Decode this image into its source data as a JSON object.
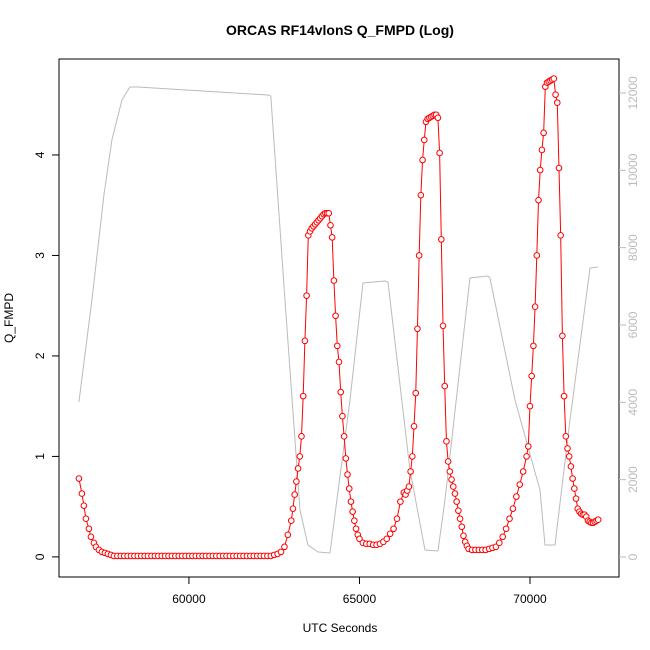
{
  "chart_data": {
    "type": "line",
    "title": "ORCAS RF14vlonS Q_FMPD (Log)",
    "xlabel": "UTC Seconds",
    "ylabel": "Q_FMPD",
    "xlim": [
      56190,
      72610
    ],
    "ylim": [
      -0.2,
      4.955
    ],
    "y2lim": [
      -517,
      12878
    ],
    "xticks": [
      60000,
      65000,
      70000
    ],
    "yticks": [
      0,
      1,
      2,
      3,
      4
    ],
    "y2ticks": [
      0,
      2000,
      4000,
      6000,
      8000,
      10000,
      12000
    ],
    "series": [
      {
        "color": "#bbbbbb",
        "axis": "y2",
        "markers": false,
        "x": [
          56774,
          57155,
          57507,
          57741,
          58035,
          58270,
          58500,
          62317,
          62400,
          62816,
          63256,
          63490,
          63784,
          64135,
          64722,
          65103,
          65748,
          65836,
          66481,
          66921,
          67302,
          67507,
          68240,
          68768,
          68827,
          69560,
          70293,
          70440,
          70733,
          71173,
          71760,
          71994
        ],
        "values": [
          4008,
          6646,
          9361,
          10784,
          11818,
          12154,
          12154,
          11947,
          11921,
          6646,
          1215,
          310,
          130,
          103,
          4060,
          7086,
          7137,
          7111,
          2250,
          181,
          155,
          1474,
          7215,
          7266,
          7215,
          4060,
          1733,
          310,
          310,
          3543,
          7473,
          7499
        ]
      },
      {
        "color": "#ff0000",
        "axis": "y",
        "markers": true,
        "x": [
          56774,
          56862,
          56920,
          56979,
          57067,
          57126,
          57214,
          57272,
          57360,
          57448,
          57536,
          57624,
          57712,
          57800,
          57900,
          58000,
          58100,
          58200,
          58300,
          58400,
          58500,
          58600,
          58700,
          58800,
          58900,
          59000,
          59100,
          59200,
          59300,
          59400,
          59500,
          59600,
          59700,
          59800,
          59900,
          60000,
          60100,
          60200,
          60300,
          60400,
          60500,
          60600,
          60700,
          60800,
          60900,
          61000,
          61100,
          61200,
          61300,
          61400,
          61500,
          61600,
          61700,
          61800,
          61900,
          62000,
          62100,
          62200,
          62300,
          62400,
          62500,
          62600,
          62700,
          62800,
          62900,
          63000,
          63050,
          63100,
          63150,
          63200,
          63250,
          63300,
          63350,
          63400,
          63450,
          63500,
          63550,
          63600,
          63650,
          63700,
          63750,
          63800,
          63850,
          63900,
          63950,
          64000,
          64050,
          64100,
          64150,
          64200,
          64250,
          64300,
          64350,
          64400,
          64450,
          64500,
          64550,
          64600,
          64650,
          64700,
          64750,
          64800,
          64850,
          64900,
          64950,
          65000,
          65100,
          65200,
          65300,
          65400,
          65500,
          65600,
          65700,
          65800,
          65900,
          66000,
          66100,
          66200,
          66300,
          66350,
          66400,
          66450,
          66500,
          66550,
          66600,
          66650,
          66700,
          66750,
          66800,
          66850,
          66900,
          66950,
          67000,
          67050,
          67100,
          67150,
          67200,
          67250,
          67300,
          67350,
          67400,
          67450,
          67500,
          67550,
          67600,
          67650,
          67700,
          67750,
          67800,
          67850,
          67900,
          67950,
          68000,
          68050,
          68100,
          68150,
          68200,
          68300,
          68400,
          68500,
          68600,
          68700,
          68800,
          68900,
          69000,
          69100,
          69200,
          69300,
          69400,
          69500,
          69600,
          69700,
          69800,
          69900,
          69950,
          70000,
          70050,
          70100,
          70150,
          70200,
          70250,
          70300,
          70350,
          70400,
          70450,
          70500,
          70550,
          70600,
          70650,
          70700,
          70750,
          70800,
          70850,
          70900,
          70950,
          71000,
          71050,
          71100,
          71150,
          71200,
          71250,
          71300,
          71350,
          71400,
          71450,
          71500,
          71550,
          71600,
          71650,
          71700,
          71750,
          71800,
          71850,
          71900,
          71950,
          72000
        ],
        "values": [
          0.78,
          0.63,
          0.51,
          0.38,
          0.28,
          0.2,
          0.14,
          0.1,
          0.07,
          0.05,
          0.04,
          0.03,
          0.02,
          0.01,
          0.01,
          0.01,
          0.01,
          0.01,
          0.01,
          0.01,
          0.01,
          0.01,
          0.01,
          0.01,
          0.01,
          0.01,
          0.01,
          0.01,
          0.01,
          0.01,
          0.01,
          0.01,
          0.01,
          0.01,
          0.01,
          0.01,
          0.01,
          0.01,
          0.01,
          0.01,
          0.01,
          0.01,
          0.01,
          0.01,
          0.01,
          0.01,
          0.01,
          0.01,
          0.01,
          0.01,
          0.01,
          0.01,
          0.01,
          0.01,
          0.01,
          0.01,
          0.01,
          0.01,
          0.01,
          0.01,
          0.02,
          0.03,
          0.05,
          0.1,
          0.22,
          0.36,
          0.48,
          0.62,
          0.75,
          0.88,
          1.0,
          1.2,
          1.6,
          2.15,
          2.6,
          3.2,
          3.24,
          3.27,
          3.29,
          3.31,
          3.33,
          3.35,
          3.37,
          3.39,
          3.41,
          3.42,
          3.42,
          3.42,
          3.3,
          3.18,
          2.75,
          2.4,
          2.1,
          1.94,
          1.64,
          1.4,
          1.2,
          0.98,
          0.82,
          0.68,
          0.55,
          0.45,
          0.36,
          0.28,
          0.22,
          0.18,
          0.14,
          0.13,
          0.13,
          0.12,
          0.12,
          0.13,
          0.15,
          0.18,
          0.23,
          0.28,
          0.38,
          0.55,
          0.64,
          0.62,
          0.66,
          0.7,
          0.85,
          1.0,
          1.3,
          1.63,
          2.27,
          3.0,
          3.6,
          3.95,
          4.15,
          4.33,
          4.36,
          4.37,
          4.38,
          4.39,
          4.4,
          4.4,
          4.37,
          4.02,
          3.16,
          2.3,
          1.7,
          1.15,
          0.95,
          0.85,
          0.77,
          0.7,
          0.63,
          0.55,
          0.46,
          0.38,
          0.3,
          0.21,
          0.15,
          0.11,
          0.08,
          0.07,
          0.07,
          0.07,
          0.07,
          0.07,
          0.08,
          0.09,
          0.1,
          0.14,
          0.2,
          0.28,
          0.38,
          0.48,
          0.6,
          0.72,
          0.85,
          1.0,
          1.1,
          1.5,
          1.8,
          2.1,
          2.49,
          3.0,
          3.55,
          3.85,
          4.05,
          4.22,
          4.68,
          4.72,
          4.73,
          4.74,
          4.75,
          4.76,
          4.6,
          4.52,
          3.87,
          3.2,
          2.2,
          1.6,
          1.2,
          1.08,
          1.0,
          0.9,
          0.78,
          0.68,
          0.58,
          0.48,
          0.45,
          0.43,
          0.42,
          0.42,
          0.4,
          0.36,
          0.35,
          0.34,
          0.34,
          0.35,
          0.36,
          0.37
        ]
      }
    ]
  }
}
